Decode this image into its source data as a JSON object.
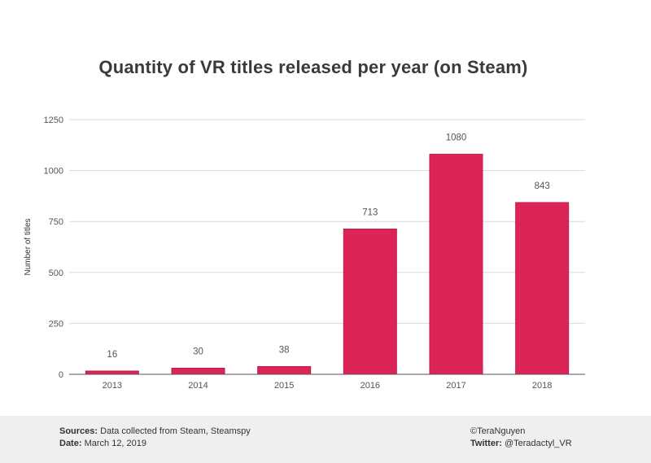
{
  "colors": {
    "bar": "#dd2457",
    "bar_stroke": "#c01c49",
    "grid": "#d9d9d9",
    "axis": "#555555",
    "footer_bg": "#efefef"
  },
  "chart_data": {
    "type": "bar",
    "title": "Quantity of VR titles released per year (on Steam)",
    "xlabel": "",
    "ylabel": "Number of titles",
    "categories": [
      "2013",
      "2014",
      "2015",
      "2016",
      "2017",
      "2018"
    ],
    "values": [
      16,
      30,
      38,
      713,
      1080,
      843
    ],
    "data_labels": [
      "16",
      "30",
      "38",
      "713",
      "1080",
      "843"
    ],
    "ylim": [
      0,
      1250
    ],
    "yticks": [
      0,
      250,
      500,
      750,
      1000,
      1250
    ],
    "ytick_labels": [
      "0",
      "250",
      "500",
      "750",
      "1000",
      "1250"
    ],
    "grid": true
  },
  "footer": {
    "sources_label": "Sources:",
    "sources_text": "Data collected from Steam, Steamspy",
    "date_label": "Date:",
    "date_text": "March 12, 2019",
    "author_text": "©TeraNguyen",
    "twitter_label": "Twitter:",
    "twitter_text": "@Teradactyl_VR"
  }
}
